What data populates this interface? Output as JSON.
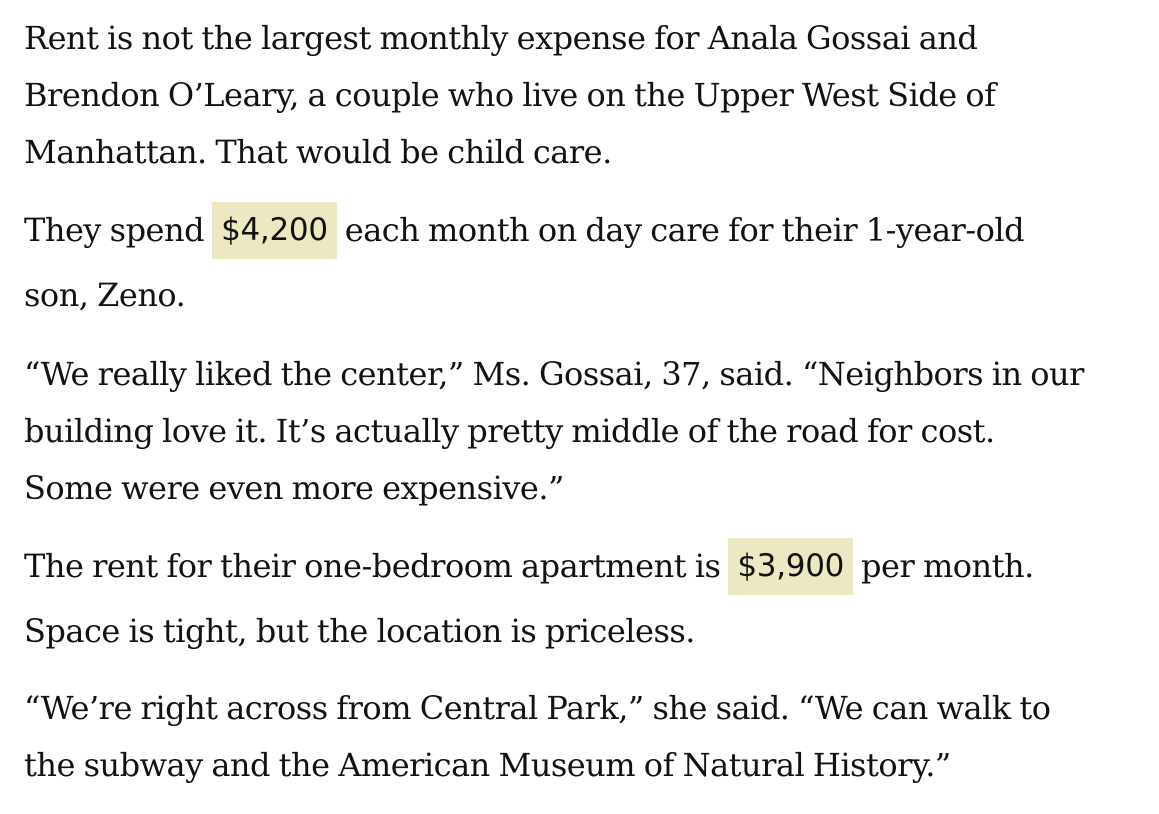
{
  "article": {
    "p1": {
      "line1": "Rent is not the largest monthly expense for Anala Gossai and",
      "line2": "Brendon O’Leary, a couple who live on the Upper West Side of",
      "line3": "Manhattan. That would be child care."
    },
    "p2": {
      "before": "They spend",
      "amount": "$4,200",
      "after": "each month on day care for their 1-year-old",
      "line2": "son, Zeno."
    },
    "p3": {
      "line1": "“We really liked the center,” Ms. Gossai, 37, said. “Neighbors in our",
      "line2": "building love it. It’s actually pretty middle of the road for cost.",
      "line3": "Some were even more expensive.”"
    },
    "p4": {
      "before": "The rent for their one-bedroom apartment is",
      "amount": "$3,900",
      "after": "per month.",
      "line2": "Space is tight, but the location is priceless."
    },
    "p5": {
      "line1": "“We’re right across from Central Park,” she said. “We can walk to",
      "line2": "the subway and the American Museum of Natural History.”"
    }
  }
}
